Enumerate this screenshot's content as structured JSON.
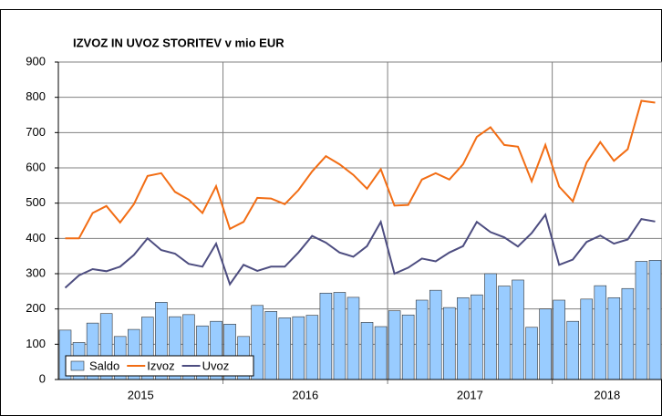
{
  "chart_data": {
    "type": "bar-line",
    "title": "IZVOZ IN UVOZ STORITEV v mio EUR",
    "categories": [
      null,
      null,
      null,
      null,
      null,
      null,
      "2015",
      null,
      null,
      null,
      null,
      null,
      null,
      null,
      null,
      null,
      null,
      null,
      "2016",
      null,
      null,
      null,
      null,
      null,
      null,
      null,
      null,
      null,
      null,
      null,
      "2017",
      null,
      null,
      null,
      null,
      null,
      null,
      null,
      null,
      null,
      null,
      null,
      "2018",
      null
    ],
    "series": [
      {
        "name": "Saldo",
        "color": "#99ccff",
        "kind": "bar",
        "values": [
          140,
          105,
          160,
          187,
          122,
          142,
          177,
          219,
          178,
          184,
          152,
          165,
          157,
          122,
          210,
          193,
          175,
          178,
          182,
          245,
          247,
          233,
          162,
          150,
          195,
          183,
          225,
          253,
          204,
          232,
          240,
          300,
          265,
          282,
          148,
          200,
          225,
          165,
          228,
          266,
          232,
          258,
          335,
          338
        ]
      },
      {
        "name": "Izvoz",
        "color": "#f26d14",
        "kind": "line",
        "values": [
          400,
          400,
          472,
          492,
          445,
          497,
          577,
          585,
          532,
          510,
          472,
          548,
          427,
          447,
          515,
          513,
          497,
          537,
          590,
          633,
          610,
          580,
          541,
          596,
          493,
          495,
          567,
          585,
          567,
          610,
          688,
          715,
          665,
          660,
          562,
          665,
          547,
          505,
          615,
          673,
          620,
          653,
          790,
          785
        ]
      },
      {
        "name": "Uvoz",
        "color": "#4d4d80",
        "kind": "line",
        "values": [
          260,
          295,
          313,
          307,
          320,
          353,
          400,
          367,
          357,
          328,
          320,
          385,
          270,
          325,
          308,
          320,
          320,
          360,
          407,
          388,
          360,
          348,
          378,
          447,
          300,
          317,
          343,
          335,
          360,
          378,
          447,
          418,
          403,
          377,
          415,
          467,
          325,
          340,
          390,
          408,
          385,
          397,
          455,
          448
        ]
      }
    ],
    "ylim": [
      0,
      900
    ],
    "yticks": [
      0,
      100,
      200,
      300,
      400,
      500,
      600,
      700,
      800,
      900
    ],
    "grid": true
  }
}
